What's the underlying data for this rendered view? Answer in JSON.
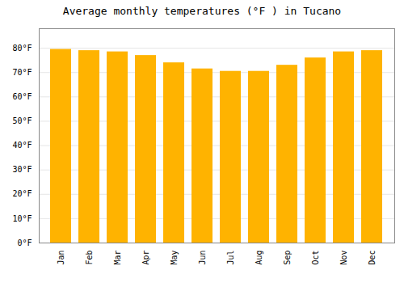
{
  "chart_data": {
    "type": "bar",
    "title": "Average monthly temperatures (°F ) in Tucano",
    "categories": [
      "Jan",
      "Feb",
      "Mar",
      "Apr",
      "May",
      "Jun",
      "Jul",
      "Aug",
      "Sep",
      "Oct",
      "Nov",
      "Dec"
    ],
    "values": [
      79.5,
      79.0,
      78.5,
      77.0,
      74.0,
      71.5,
      70.5,
      70.5,
      73.0,
      76.0,
      78.5,
      79.0
    ],
    "color": "#FFB300",
    "ylim": [
      0,
      88
    ],
    "yticks": [
      {
        "value": 0,
        "label": "0°F"
      },
      {
        "value": 10,
        "label": "10°F"
      },
      {
        "value": 20,
        "label": "20°F"
      },
      {
        "value": 30,
        "label": "30°F"
      },
      {
        "value": 40,
        "label": "40°F"
      },
      {
        "value": 50,
        "label": "50°F"
      },
      {
        "value": 60,
        "label": "60°F"
      },
      {
        "value": 70,
        "label": "70°F"
      },
      {
        "value": 80,
        "label": "80°F"
      }
    ],
    "grid": true
  }
}
